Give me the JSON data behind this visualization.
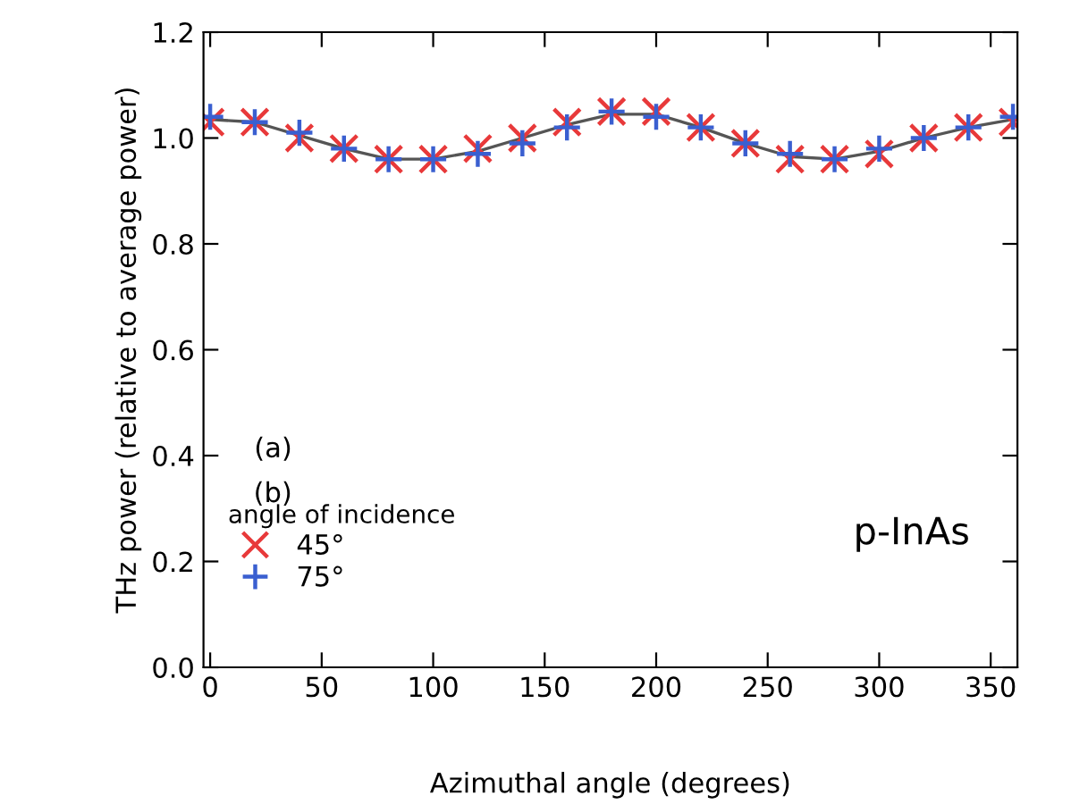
{
  "chart_data": {
    "type": "scatter",
    "xlabel": "Azimuthal angle (degrees)",
    "ylabel": "THz power (relative to average power)",
    "legend_title": "angle of incidence",
    "x": [
      0,
      20,
      40,
      60,
      80,
      100,
      120,
      140,
      160,
      180,
      200,
      220,
      240,
      260,
      280,
      300,
      320,
      340,
      360
    ],
    "series": [
      {
        "name": "45°",
        "color": "#e8393a",
        "marker": "cross",
        "values": [
          1.03,
          1.03,
          1.0,
          0.98,
          0.96,
          0.96,
          0.98,
          1.0,
          1.03,
          1.05,
          1.05,
          1.02,
          0.99,
          0.96,
          0.96,
          0.97,
          1.0,
          1.02,
          1.03
        ]
      },
      {
        "name": "75°",
        "color": "#3a5fd0",
        "marker": "plus",
        "values": [
          1.04,
          1.03,
          1.01,
          0.98,
          0.96,
          0.96,
          0.97,
          0.99,
          1.02,
          1.05,
          1.04,
          1.02,
          0.99,
          0.97,
          0.96,
          0.98,
          1.0,
          1.02,
          1.04
        ]
      },
      {
        "type": "line",
        "color": "#555555",
        "values": [
          1.035,
          1.03,
          1.005,
          0.98,
          0.96,
          0.96,
          0.975,
          1.0,
          1.025,
          1.045,
          1.045,
          1.02,
          0.99,
          0.965,
          0.96,
          0.975,
          1.0,
          1.02,
          1.035
        ]
      }
    ],
    "annotations": [
      "(a)",
      "(b)",
      "p-InAs"
    ],
    "xlim": [
      -3,
      362
    ],
    "xticks": [
      0,
      50,
      100,
      150,
      200,
      250,
      300,
      350
    ],
    "ylim": [
      0,
      1.2
    ],
    "yticks": [
      {
        "value": 0,
        "label": "0.0"
      },
      {
        "value": 0.2,
        "label": "0.2"
      },
      {
        "value": 0.4,
        "label": "0.4"
      },
      {
        "value": 0.6,
        "label": "0.6"
      },
      {
        "value": 0.8,
        "label": "0.8"
      },
      {
        "value": 1.0,
        "label": "1.0"
      },
      {
        "value": 1.2,
        "label": "1.2"
      }
    ],
    "legend": "bottom left",
    "grid": false
  }
}
